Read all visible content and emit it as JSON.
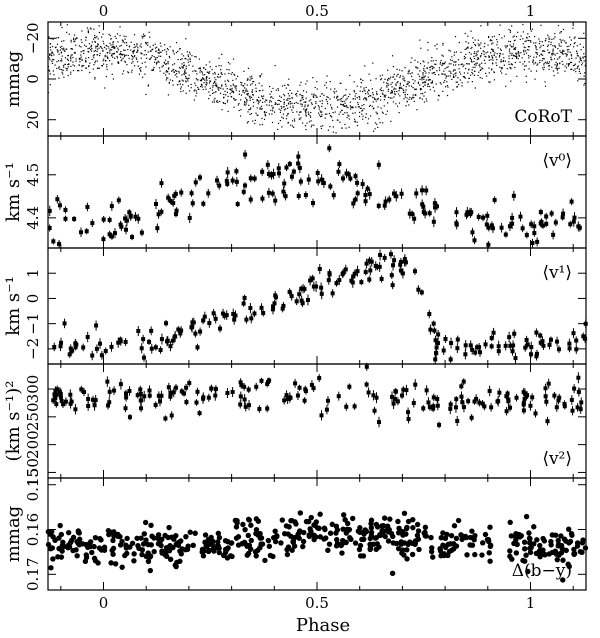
{
  "chart_data": {
    "type": "scatter",
    "xlabel": "Phase",
    "x_ticks": [
      "0",
      "0.5",
      "1"
    ],
    "xlim": [
      -0.13,
      1.13
    ],
    "panels": [
      {
        "id": "corot",
        "label": "CoRoT",
        "ylabel": "mmag",
        "y_ticks": [
          "−20",
          "0",
          "20"
        ],
        "y_tick_values": [
          -20,
          0,
          20
        ],
        "ylim": [
          -28,
          28
        ],
        "inverted": true,
        "model": {
          "kind": "sine",
          "mean": 0,
          "amplitude": 14,
          "phase_of_min_mmag": 0.0,
          "scatter": 6
        },
        "n_points": 2200
      },
      {
        "id": "v0",
        "label": "⟨v⁰⟩",
        "ylabel": "km s⁻¹",
        "y_ticks": [
          "4.5",
          "4.4"
        ],
        "y_tick_values": [
          4.5,
          4.4
        ],
        "ylim": [
          4.33,
          4.59
        ],
        "inverted": false,
        "model": {
          "kind": "sine",
          "mean": 4.44,
          "amplitude": 0.06,
          "peak_phase": 0.45,
          "scatter": 0.025
        },
        "n_points": 190,
        "error_bars": true
      },
      {
        "id": "v1",
        "label": "⟨v¹⟩",
        "ylabel": "km s⁻¹",
        "y_ticks": [
          "1",
          "0",
          "−1",
          "−2"
        ],
        "y_tick_values": [
          1,
          0,
          -1,
          -2
        ],
        "ylim": [
          -2.6,
          2.0
        ],
        "inverted": false,
        "model": {
          "kind": "sawtooth",
          "min": -1.8,
          "max": 1.6,
          "rise_start": 0.1,
          "peak_phase": 0.72,
          "scatter": 0.3
        },
        "n_points": 200,
        "error_bars": true
      },
      {
        "id": "v2",
        "label": "⟨v²⟩",
        "ylabel": "(km s⁻¹)²",
        "y_ticks": [
          "300",
          "250",
          "200",
          "150"
        ],
        "y_tick_values": [
          300,
          250,
          200,
          150
        ],
        "ylim": [
          140,
          345
        ],
        "inverted": false,
        "model": {
          "kind": "flat",
          "mean": 283,
          "scatter": 16
        },
        "n_points": 200,
        "error_bars": true
      },
      {
        "id": "by",
        "label": "Δ(b−y)",
        "ylabel": "mmag",
        "y_ticks": [
          "0.15",
          "0.16",
          "0.17"
        ],
        "y_tick_values": [
          0.15,
          0.16,
          0.17
        ],
        "ylim": [
          0.1485,
          0.1735
        ],
        "inverted": true,
        "model": {
          "kind": "sine",
          "mean": 0.1625,
          "amplitude": 0.0015,
          "peak_phase": 0.05,
          "scatter": 0.0022
        },
        "n_points": 560
      }
    ]
  }
}
